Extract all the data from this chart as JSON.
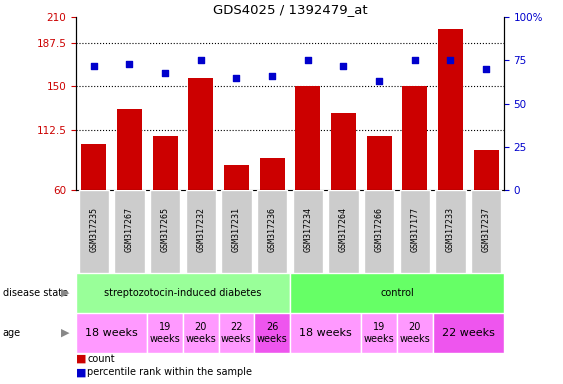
{
  "title": "GDS4025 / 1392479_at",
  "samples": [
    "GSM317235",
    "GSM317267",
    "GSM317265",
    "GSM317232",
    "GSM317231",
    "GSM317236",
    "GSM317234",
    "GSM317264",
    "GSM317266",
    "GSM317177",
    "GSM317233",
    "GSM317237"
  ],
  "bar_values": [
    100,
    130,
    107,
    157,
    82,
    88,
    150,
    127,
    107,
    150,
    200,
    95
  ],
  "scatter_values": [
    72,
    73,
    68,
    75,
    65,
    66,
    75,
    72,
    63,
    75,
    75,
    70
  ],
  "bar_color": "#cc0000",
  "scatter_color": "#0000cc",
  "ylim_left": [
    60,
    210
  ],
  "ylim_right": [
    0,
    100
  ],
  "yticks_left": [
    60,
    112.5,
    150,
    187.5,
    210
  ],
  "ytick_labels_left": [
    "60",
    "112.5",
    "150",
    "187.5",
    "210"
  ],
  "yticks_right": [
    0,
    25,
    50,
    75,
    100
  ],
  "ytick_labels_right": [
    "0",
    "25",
    "50",
    "75",
    "100%"
  ],
  "hlines": [
    112.5,
    150,
    187.5
  ],
  "disease_state_groups": [
    {
      "label": "streptozotocin-induced diabetes",
      "start": 0,
      "end": 6,
      "color": "#99ff99"
    },
    {
      "label": "control",
      "start": 6,
      "end": 12,
      "color": "#66ff66"
    }
  ],
  "age_groups": [
    {
      "label": "18 weeks",
      "start": 0,
      "end": 2,
      "color": "#ff99ff",
      "fontsize": 8
    },
    {
      "label": "19\nweeks",
      "start": 2,
      "end": 3,
      "color": "#ff99ff",
      "fontsize": 7
    },
    {
      "label": "20\nweeks",
      "start": 3,
      "end": 4,
      "color": "#ff99ff",
      "fontsize": 7
    },
    {
      "label": "22\nweeks",
      "start": 4,
      "end": 5,
      "color": "#ff99ff",
      "fontsize": 7
    },
    {
      "label": "26\nweeks",
      "start": 5,
      "end": 6,
      "color": "#ee55ee",
      "fontsize": 7
    },
    {
      "label": "18 weeks",
      "start": 6,
      "end": 8,
      "color": "#ff99ff",
      "fontsize": 8
    },
    {
      "label": "19\nweeks",
      "start": 8,
      "end": 9,
      "color": "#ff99ff",
      "fontsize": 7
    },
    {
      "label": "20\nweeks",
      "start": 9,
      "end": 10,
      "color": "#ff99ff",
      "fontsize": 7
    },
    {
      "label": "22 weeks",
      "start": 10,
      "end": 12,
      "color": "#ee55ee",
      "fontsize": 8
    }
  ],
  "legend_items": [
    {
      "label": "count",
      "color": "#cc0000"
    },
    {
      "label": "percentile rank within the sample",
      "color": "#0000cc"
    }
  ],
  "tick_label_color_left": "#cc0000",
  "tick_label_color_right": "#0000cc",
  "sample_box_color": "#cccccc",
  "arrow_color": "#888888"
}
